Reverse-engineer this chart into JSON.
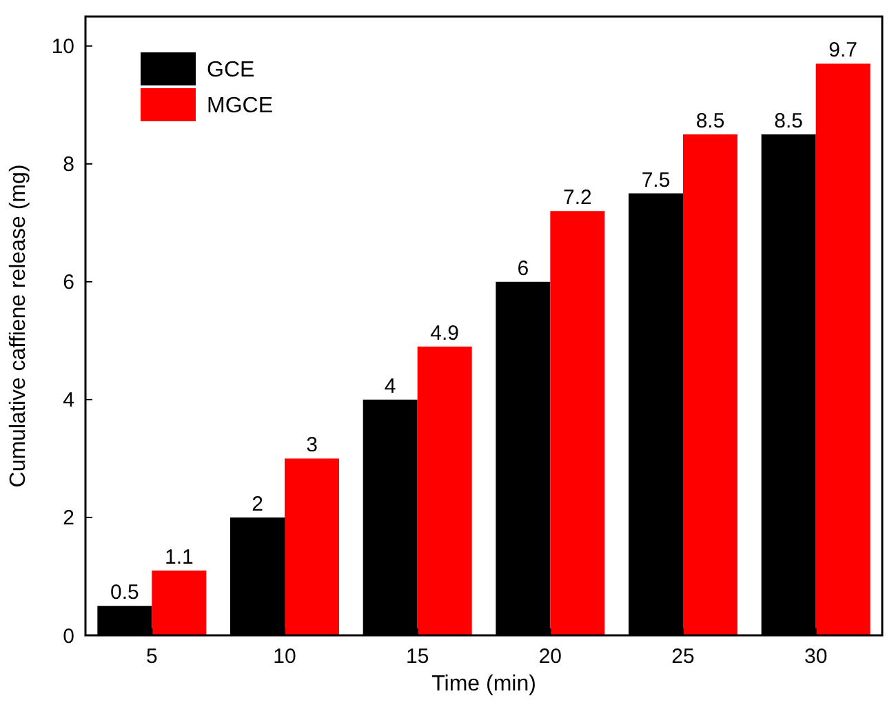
{
  "chart_data": {
    "type": "bar",
    "xlabel": "Time (min)",
    "ylabel": "Cumulative caffiene release (mg)",
    "categories": [
      "5",
      "10",
      "15",
      "20",
      "25",
      "30"
    ],
    "series": [
      {
        "name": "GCE",
        "color": "#000000",
        "values": [
          0.5,
          2,
          4,
          6,
          7.5,
          8.5
        ]
      },
      {
        "name": "MGCE",
        "color": "#ff0000",
        "values": [
          1.1,
          3,
          4.9,
          7.2,
          8.5,
          9.7
        ]
      }
    ],
    "ylim": [
      0,
      10.5
    ],
    "yticks": [
      0,
      2,
      4,
      6,
      8,
      10
    ],
    "data_labels": true,
    "legend": "top left",
    "grid": false
  }
}
